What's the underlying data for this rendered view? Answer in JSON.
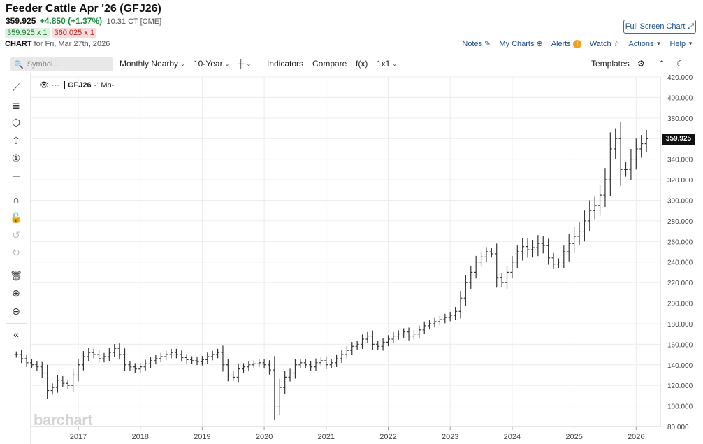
{
  "header": {
    "title": "Feeder Cattle Apr '26 (GFJ26)",
    "last": "359.925",
    "change": "+4.850 (+1.37%)",
    "time": "10:31 CT [CME]",
    "bid": "359.925 x 1",
    "ask": "360.025 x 1",
    "chart_label": "CHART",
    "chart_date": "for Fri, Mar 27th, 2026",
    "fullscreen_label": "Full Screen Chart"
  },
  "links": {
    "notes": "Notes",
    "mycharts": "My Charts",
    "alerts": "Alerts",
    "watch": "Watch",
    "actions": "Actions",
    "help": "Help"
  },
  "toolbar": {
    "symbol_placeholder": "Symbol...",
    "nearby": "Monthly Nearby",
    "period": "10-Year",
    "indicators": "Indicators",
    "compare": "Compare",
    "fx": "f(x)",
    "layout": "1x1",
    "templates": "Templates"
  },
  "legend": {
    "symbol": "GFJ26",
    "interval": "-1Mn-"
  },
  "watermark": "barchart",
  "price_tag": "359.925",
  "icons": {
    "sidebar": [
      "line-tool-icon",
      "fib-tool-icon",
      "shape-tool-icon",
      "arrow-up-icon",
      "number-marker-icon",
      "measure-tool-icon",
      "magnet-icon",
      "lock-icon",
      "undo-icon",
      "redo-icon",
      "trash-icon",
      "zoom-in-icon",
      "zoom-out-icon",
      "collapse-icon"
    ]
  },
  "chart_data": {
    "type": "ohlc-bar",
    "title": "Feeder Cattle Apr '26 (GFJ26)",
    "interval": "Monthly",
    "y_ticks": [
      80,
      100,
      120,
      140,
      160,
      180,
      200,
      220,
      240,
      260,
      280,
      300,
      320,
      340,
      360,
      380,
      400,
      420
    ],
    "y_tick_labels": [
      "80.000",
      "100.000",
      "120.000",
      "140.000",
      "160.000",
      "180.000",
      "200.000",
      "220.000",
      "240.000",
      "260.000",
      "280.000",
      "300.000",
      "320.000",
      "340.000",
      "360.000",
      "380.000",
      "400.000",
      "420.000"
    ],
    "ylim": [
      80,
      420
    ],
    "x_labels": [
      "2017",
      "2018",
      "2019",
      "2020",
      "2021",
      "2022",
      "2023",
      "2024",
      "2025",
      "2026"
    ],
    "x_start_year": 2016.0,
    "last_price": 359.925,
    "closes": [
      150,
      146,
      142,
      140,
      138,
      132,
      115,
      118,
      125,
      122,
      120,
      130,
      140,
      148,
      152,
      150,
      146,
      148,
      152,
      156,
      150,
      140,
      138,
      136,
      138,
      141,
      144,
      146,
      148,
      150,
      152,
      150,
      147,
      145,
      144,
      143,
      145,
      148,
      150,
      152,
      140,
      130,
      128,
      136,
      138,
      140,
      141,
      142,
      140,
      135,
      100,
      118,
      128,
      132,
      140,
      142,
      140,
      138,
      142,
      144,
      140,
      142,
      146,
      150,
      154,
      158,
      160,
      165,
      168,
      160,
      158,
      162,
      165,
      168,
      170,
      172,
      168,
      170,
      174,
      178,
      180,
      182,
      184,
      186,
      188,
      192,
      205,
      220,
      230,
      240,
      245,
      250,
      248,
      225,
      220,
      230,
      240,
      250,
      255,
      252,
      254,
      258,
      256,
      244,
      238,
      240,
      250,
      258,
      265,
      270,
      280,
      290,
      295,
      305,
      320,
      350,
      360,
      330,
      330,
      340,
      350,
      355,
      359.925
    ]
  }
}
